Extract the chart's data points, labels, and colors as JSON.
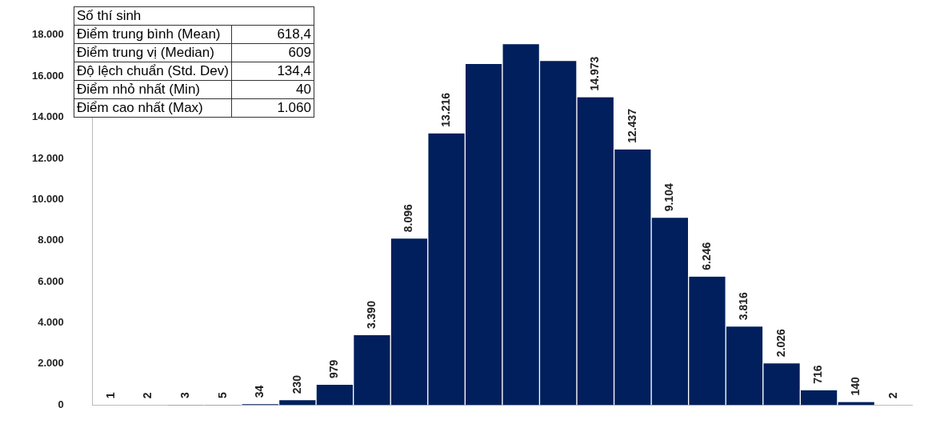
{
  "chart_data": {
    "type": "bar",
    "categories": [
      null,
      null,
      null,
      null,
      null,
      null,
      null,
      null,
      null,
      null,
      null,
      null,
      null,
      null,
      null,
      null,
      null,
      null,
      null,
      null,
      null,
      null
    ],
    "values": [
      1,
      2,
      3,
      5,
      34,
      230,
      979,
      3390,
      8096,
      13216,
      16590,
      17550,
      16740,
      14973,
      12437,
      9104,
      6246,
      3816,
      2026,
      716,
      140,
      2
    ],
    "value_labels": [
      "1",
      "2",
      "3",
      "5",
      "34",
      "230",
      "979",
      "3.390",
      "8.096",
      "13.216",
      null,
      null,
      null,
      "14.973",
      "12.437",
      "9.104",
      "6.246",
      "3.816",
      "2.026",
      "716",
      "140",
      "2"
    ],
    "color": "#001f5c",
    "ylim": [
      0,
      18000
    ],
    "yticks": [
      {
        "value": 0,
        "label": "0"
      },
      {
        "value": 2000,
        "label": "2.000"
      },
      {
        "value": 4000,
        "label": "4.000"
      },
      {
        "value": 6000,
        "label": "6.000"
      },
      {
        "value": 8000,
        "label": "8.000"
      },
      {
        "value": 10000,
        "label": "10.000"
      },
      {
        "value": 12000,
        "label": "12.000"
      },
      {
        "value": 14000,
        "label": "14.000"
      },
      {
        "value": 16000,
        "label": "16.000"
      },
      {
        "value": 18000,
        "label": "18.000"
      }
    ],
    "grid": false,
    "legend": false,
    "tick_labels": "y",
    "annotations": [
      "Số thí sinh",
      "Điểm trung bình (Mean)",
      "618,4",
      "Điểm trung vị (Median)",
      "609",
      "Độ lệch chuẩn (Std. Dev)",
      "134,4",
      "Điểm nhỏ nhất (Min)",
      "40",
      "Điểm cao nhất (Max)",
      "1.060"
    ]
  }
}
